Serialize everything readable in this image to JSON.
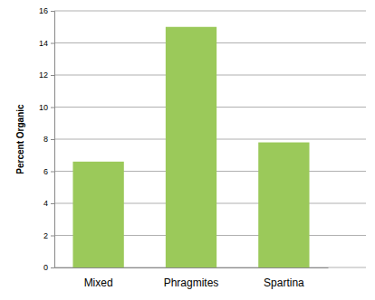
{
  "chart_data": {
    "type": "bar",
    "y_label": "Percent Organic",
    "categories": [
      "Mixed",
      "Phragmites",
      "Spartina"
    ],
    "values": [
      6.6,
      15.0,
      7.8
    ],
    "color": "#9bc95a",
    "ylim": [
      0,
      16
    ],
    "yticks": [
      0,
      2,
      4,
      6,
      8,
      10,
      12,
      14,
      16
    ],
    "grid": true
  }
}
